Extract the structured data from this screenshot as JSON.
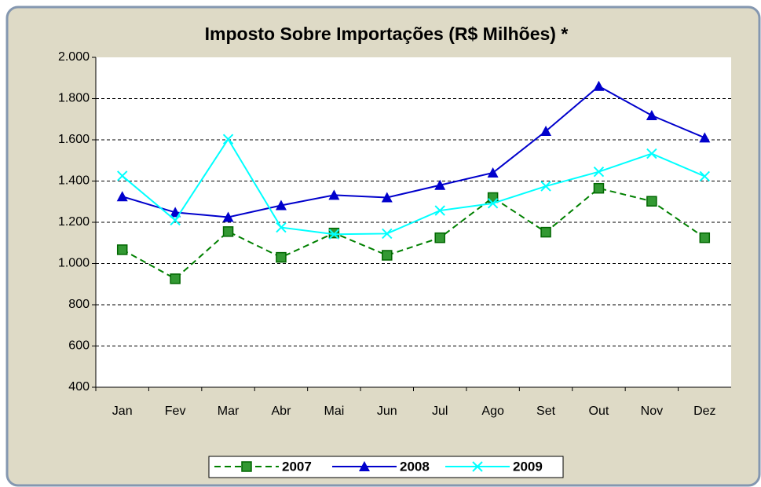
{
  "chart_data": {
    "type": "line",
    "title": "Imposto Sobre Importações (R$ Milhões) *",
    "categories": [
      "Jan",
      "Fev",
      "Mar",
      "Abr",
      "Mai",
      "Jun",
      "Jul",
      "Ago",
      "Set",
      "Out",
      "Nov",
      "Dez"
    ],
    "series": [
      {
        "name": "2007",
        "color": "#008000",
        "values": [
          1067,
          926,
          1155,
          1030,
          1148,
          1040,
          1125,
          1320,
          1152,
          1365,
          1302,
          1125
        ]
      },
      {
        "name": "2008",
        "color": "#0000CC",
        "values": [
          1325,
          1248,
          1225,
          1282,
          1332,
          1320,
          1380,
          1440,
          1642,
          1860,
          1718,
          1610
        ]
      },
      {
        "name": "2009",
        "color": "#00FFFF",
        "values": [
          1425,
          1210,
          1603,
          1175,
          1142,
          1145,
          1257,
          1292,
          1375,
          1445,
          1533,
          1423
        ]
      }
    ],
    "ylim": [
      400,
      2000
    ],
    "yticks": [
      400,
      600,
      800,
      {
        "value": 1000,
        "label": "1.000"
      },
      {
        "value": 1200,
        "label": "1.200"
      },
      {
        "value": 1400,
        "label": "1.400"
      },
      {
        "value": 1600,
        "label": "1.600"
      },
      {
        "value": 1800,
        "label": "1.800"
      },
      {
        "value": 2000,
        "label": "2.000"
      }
    ],
    "grid": true,
    "legend": "bottom"
  }
}
